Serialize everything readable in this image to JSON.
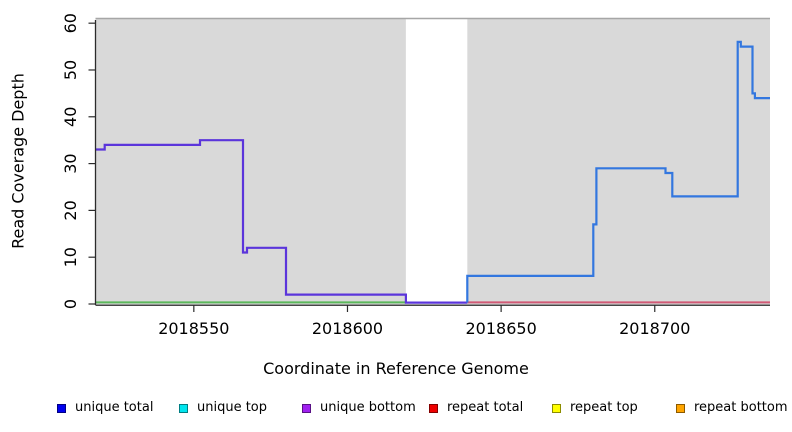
{
  "chart_data": {
    "type": "line",
    "title": "",
    "xlabel": "Coordinate in Reference Genome",
    "ylabel": "Read Coverage Depth",
    "xlim": [
      2018518,
      2018737.5
    ],
    "ylim": [
      0,
      61
    ],
    "x_ticks": [
      2018550,
      2018600,
      2018650,
      2018700
    ],
    "y_ticks": [
      0,
      10,
      20,
      30,
      40,
      50,
      60
    ],
    "grid": false,
    "plot_bg": "#D9D9D9",
    "axis_color": "#2B2B2B",
    "highlight_region": {
      "x0": 2018619,
      "x1": 2018639,
      "color": "#FFFFFF",
      "top_value": 61,
      "top_border_color": "#A6A6A6",
      "meaning": "white band where gray background is absent; capped line at 61 across top"
    },
    "series": [
      {
        "name": "zero-baseline-left",
        "color": "#5CB85C",
        "width": 2,
        "points": [
          [
            2018518,
            0.35
          ],
          [
            2018619,
            0.35
          ]
        ]
      },
      {
        "name": "zero-baseline-right",
        "color": "#D15A76",
        "width": 2,
        "points": [
          [
            2018639,
            0.35
          ],
          [
            2018737.5,
            0.35
          ]
        ]
      },
      {
        "name": "unique-coverage-left",
        "color": "#5B35DB",
        "width": 2.2,
        "points": [
          [
            2018518,
            33
          ],
          [
            2018521,
            33
          ],
          [
            2018521,
            34
          ],
          [
            2018552,
            34
          ],
          [
            2018552,
            35
          ],
          [
            2018566,
            35
          ],
          [
            2018566,
            11
          ],
          [
            2018567.3,
            11
          ],
          [
            2018567.3,
            12
          ],
          [
            2018580,
            12
          ],
          [
            2018580,
            2
          ],
          [
            2018619,
            2
          ],
          [
            2018619,
            0.3
          ],
          [
            2018639,
            0.3
          ]
        ]
      },
      {
        "name": "unique-coverage-right",
        "color": "#3377DF",
        "width": 2.2,
        "points": [
          [
            2018639,
            0.3
          ],
          [
            2018639,
            6
          ],
          [
            2018680,
            6
          ],
          [
            2018680,
            17
          ],
          [
            2018681,
            17
          ],
          [
            2018681,
            29
          ],
          [
            2018703.5,
            29
          ],
          [
            2018703.5,
            28
          ],
          [
            2018705.7,
            28
          ],
          [
            2018705.7,
            23
          ],
          [
            2018727,
            23
          ],
          [
            2018727,
            56
          ],
          [
            2018728,
            56
          ],
          [
            2018728,
            55
          ],
          [
            2018731.8,
            55
          ],
          [
            2018731.8,
            45
          ],
          [
            2018732.6,
            45
          ],
          [
            2018732.6,
            44
          ],
          [
            2018737.5,
            44
          ]
        ]
      }
    ],
    "legend_position": "bottom",
    "legend": [
      {
        "label": "unique total",
        "color": "#0000EE"
      },
      {
        "label": "unique top",
        "color": "#00E5EE"
      },
      {
        "label": "unique bottom",
        "color": "#A020F0"
      },
      {
        "label": "repeat total",
        "color": "#EE0000"
      },
      {
        "label": "repeat top",
        "color": "#FFFF00"
      },
      {
        "label": "repeat bottom",
        "color": "#FFA500"
      }
    ]
  }
}
